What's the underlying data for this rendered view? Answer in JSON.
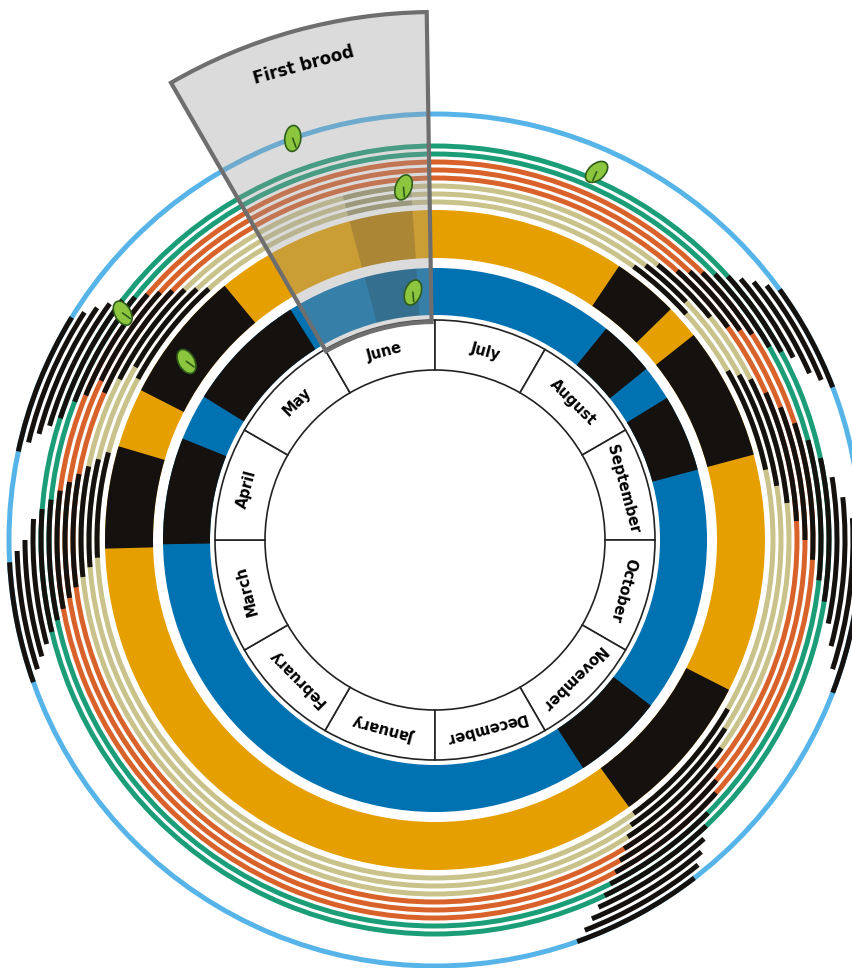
{
  "chart_data": {
    "type": "annual_cycle",
    "categories": [
      "January",
      "February",
      "March",
      "April",
      "May",
      "June",
      "July",
      "August",
      "September",
      "October",
      "November",
      "December"
    ],
    "first_brood": {
      "label": "First brood",
      "start": 5.0,
      "end": 5.97,
      "peak": [
        5.5,
        5.87
      ]
    },
    "rings": [
      {
        "color": "#0072b2",
        "black": [
          [
            2.97,
            3.73
          ],
          [
            4.06,
            4.93
          ],
          [
            7.3,
            7.7
          ],
          [
            7.95,
            8.5
          ],
          [
            10.25,
            10.9
          ]
        ]
      },
      {
        "color": "#e69f00",
        "black": [
          [
            2.95,
            3.55
          ],
          [
            3.9,
            4.68
          ],
          [
            7.13,
            7.52
          ],
          [
            7.72,
            8.5
          ],
          [
            9.9,
            10.8
          ]
        ]
      },
      {
        "color": "#c9c28a",
        "black": [
          [
            2.9,
            3.5
          ],
          [
            3.95,
            4.6
          ],
          [
            7.2,
            7.6
          ],
          [
            8.0,
            8.6
          ],
          [
            10.0,
            10.8
          ]
        ]
      },
      {
        "color": "#c9c28a",
        "black": [
          [
            2.85,
            3.45
          ],
          [
            4.0,
            4.55
          ],
          [
            7.25,
            7.55
          ],
          [
            8.05,
            8.7
          ],
          [
            10.1,
            10.85
          ]
        ]
      },
      {
        "color": "#c9c28a",
        "black": [
          [
            2.8,
            3.4
          ],
          [
            3.9,
            4.5
          ],
          [
            7.3,
            7.7
          ],
          [
            8.1,
            8.8
          ],
          [
            10.2,
            10.9
          ]
        ]
      },
      {
        "color": "#d9622b",
        "black": [
          [
            2.75,
            3.35
          ],
          [
            3.8,
            4.45
          ],
          [
            7.4,
            7.8
          ],
          [
            8.2,
            8.9
          ],
          [
            10.3,
            10.95
          ]
        ]
      },
      {
        "color": "#d9622b",
        "black": [
          [
            2.7,
            3.3
          ],
          [
            3.85,
            4.4
          ],
          [
            7.45,
            7.85
          ],
          [
            8.3,
            9.0
          ],
          [
            10.35,
            11.0
          ]
        ]
      },
      {
        "color": "#d9622b",
        "black": [
          [
            2.65,
            3.25
          ],
          [
            3.75,
            4.35
          ],
          [
            7.5,
            7.9
          ],
          [
            8.4,
            9.1
          ],
          [
            10.4,
            11.05
          ]
        ]
      },
      {
        "color": "#1b9e77",
        "black": [
          [
            2.6,
            3.2
          ],
          [
            3.7,
            4.3
          ],
          [
            7.55,
            8.0
          ],
          [
            8.5,
            9.2
          ],
          [
            10.5,
            11.1
          ]
        ]
      },
      {
        "color": "#1b9e77",
        "black": [
          [
            2.55,
            3.15
          ],
          [
            3.6,
            4.25
          ],
          [
            7.6,
            8.05
          ],
          [
            8.6,
            9.3
          ],
          [
            10.55,
            11.15
          ]
        ]
      },
      {
        "color": null,
        "black": [
          [
            2.5,
            3.1
          ],
          [
            3.55,
            4.2
          ],
          [
            7.65,
            8.1
          ],
          [
            8.7,
            9.4
          ],
          [
            10.6,
            11.2
          ]
        ]
      },
      {
        "color": null,
        "black": [
          [
            2.45,
            3.0
          ],
          [
            3.5,
            4.15
          ],
          [
            7.7,
            8.2
          ],
          [
            8.8,
            9.5
          ],
          [
            10.65,
            11.25
          ]
        ]
      },
      {
        "color": null,
        "black": [
          [
            2.4,
            2.95
          ],
          [
            3.45,
            4.1
          ],
          [
            7.75,
            8.25
          ],
          [
            8.9,
            9.6
          ],
          [
            10.7,
            11.3
          ]
        ]
      },
      {
        "color": "#56b4e9",
        "black": [
          [
            2.35,
            2.9
          ],
          [
            3.4,
            4.05
          ],
          [
            7.8,
            8.3
          ],
          [
            9.0,
            9.7
          ],
          [
            10.75,
            11.35
          ]
        ]
      }
    ],
    "leaves": [
      {
        "month": 5.35,
        "ring": 13
      },
      {
        "month": 5.83,
        "ring": 4
      },
      {
        "month": 5.83,
        "ring": 0
      },
      {
        "month": 6.79,
        "ring": 10
      },
      {
        "month": 4.2,
        "ring": 8
      },
      {
        "month": 4.19,
        "ring": 1
      }
    ]
  }
}
